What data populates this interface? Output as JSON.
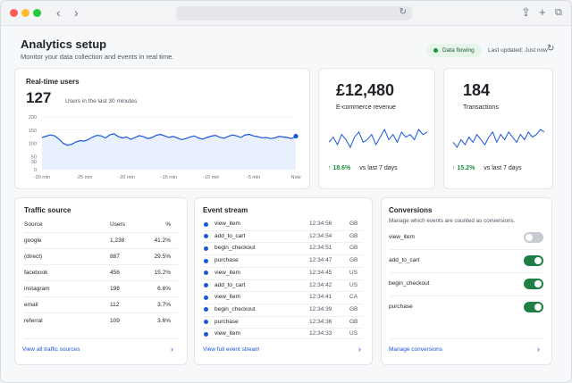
{
  "header": {
    "title": "Analytics setup",
    "subtitle": "Monitor your data collection and events in real time.",
    "status_badge": "Data flowing",
    "last_updated": "Last updated: Just now"
  },
  "realtime": {
    "title": "Real-time users",
    "value": "127",
    "caption": "Users in the last 30 minutes",
    "chart_data": {
      "type": "area",
      "x_tick_labels": [
        "-30 min",
        "-25 min",
        "-20 min",
        "-15 min",
        "-10 min",
        "-5 min",
        "Now"
      ],
      "y_ticks": [
        0,
        30,
        50,
        100,
        150,
        200
      ],
      "ylim": [
        0,
        200
      ],
      "x": [
        0,
        1,
        2,
        3,
        4,
        5,
        6,
        7,
        8,
        9,
        10,
        11,
        12,
        13,
        14,
        15,
        16,
        17,
        18,
        19,
        20,
        21,
        22,
        23,
        24,
        25,
        26,
        27,
        28,
        29,
        30,
        31,
        32,
        33,
        34,
        35,
        36,
        37,
        38,
        39,
        40,
        41,
        42,
        43,
        44,
        45,
        46,
        47,
        48,
        49,
        50,
        51,
        52,
        53,
        54,
        55,
        56,
        57,
        58,
        59,
        60
      ],
      "values": [
        122,
        127,
        132,
        128,
        116,
        100,
        93,
        96,
        105,
        110,
        108,
        115,
        124,
        130,
        128,
        120,
        132,
        136,
        126,
        120,
        124,
        115,
        122,
        129,
        125,
        118,
        122,
        130,
        134,
        128,
        122,
        126,
        120,
        114,
        118,
        124,
        128,
        120,
        116,
        122,
        127,
        130,
        123,
        119,
        126,
        132,
        128,
        122,
        132,
        134,
        128,
        125,
        121,
        122,
        118,
        120,
        126,
        124,
        122,
        118,
        127
      ],
      "colors": {
        "line": "#1a56db",
        "fill": "#e8f0fd"
      }
    }
  },
  "revenue": {
    "value": "£12,480",
    "label": "E-commerce revenue",
    "trend": "18.6%",
    "trend_caption": "vs last 7 days",
    "sparkline": [
      5,
      7,
      4,
      8,
      6,
      3,
      7,
      9,
      5,
      6,
      8,
      4,
      7,
      10,
      6,
      8,
      5,
      9,
      7,
      8,
      6,
      10,
      8,
      9
    ]
  },
  "transactions": {
    "value": "184",
    "label": "Transactions",
    "trend": "15.2%",
    "trend_caption": "vs last 7 days",
    "sparkline": [
      5,
      3,
      6,
      4,
      7,
      5,
      8,
      6,
      4,
      7,
      9,
      5,
      8,
      6,
      9,
      7,
      5,
      8,
      6,
      9,
      7,
      8,
      10,
      9
    ]
  },
  "traffic": {
    "title": "Traffic source",
    "headers": {
      "source": "Source",
      "users": "Users",
      "pct": "%"
    },
    "rows": [
      {
        "source": "google",
        "users": "1,238",
        "pct": "41.2%"
      },
      {
        "source": "(direct)",
        "users": "887",
        "pct": "29.5%"
      },
      {
        "source": "facebook",
        "users": "456",
        "pct": "15.2%"
      },
      {
        "source": "instagram",
        "users": "198",
        "pct": "6.6%"
      },
      {
        "source": "email",
        "users": "112",
        "pct": "3.7%"
      },
      {
        "source": "referral",
        "users": "109",
        "pct": "3.6%"
      }
    ],
    "link": "View all traffic sources"
  },
  "events": {
    "title": "Event stream",
    "rows": [
      {
        "name": "view_item",
        "time": "12:34:56",
        "country": "GB"
      },
      {
        "name": "add_to_cart",
        "time": "12:34:54",
        "country": "GB"
      },
      {
        "name": "begin_checkout",
        "time": "12:34:51",
        "country": "GB"
      },
      {
        "name": "purchase",
        "time": "12:34:47",
        "country": "GB"
      },
      {
        "name": "view_item",
        "time": "12:34:45",
        "country": "US"
      },
      {
        "name": "add_to_cart",
        "time": "12:34:42",
        "country": "US"
      },
      {
        "name": "view_item",
        "time": "12:34:41",
        "country": "CA"
      },
      {
        "name": "begin_checkout",
        "time": "12:34:39",
        "country": "GB"
      },
      {
        "name": "purchase",
        "time": "12:34:36",
        "country": "GB"
      },
      {
        "name": "view_item",
        "time": "12:34:33",
        "country": "US"
      }
    ],
    "link": "View full event stream"
  },
  "conversions": {
    "title": "Conversions",
    "subtitle": "Manage which events are counted as conversions.",
    "items": [
      {
        "name": "view_item",
        "enabled": false
      },
      {
        "name": "add_to_cart",
        "enabled": true
      },
      {
        "name": "begin_checkout",
        "enabled": true
      },
      {
        "name": "purchase",
        "enabled": true
      }
    ],
    "link": "Manage conversions"
  },
  "colors": {
    "accent": "#1a56db",
    "success": "#1e8e3e",
    "toggle_on": "#1e7e46",
    "toggle_off": "#c7cbd1"
  },
  "icons": {
    "back": "chevron-left-icon",
    "forward": "chevron-right-icon",
    "reload": "reload-icon",
    "share": "share-icon",
    "new_tab": "plus-icon",
    "tabs": "tabs-icon",
    "refresh": "refresh-icon",
    "trend": "arrow-up-icon",
    "link_arrow": "chevron-right-icon"
  }
}
